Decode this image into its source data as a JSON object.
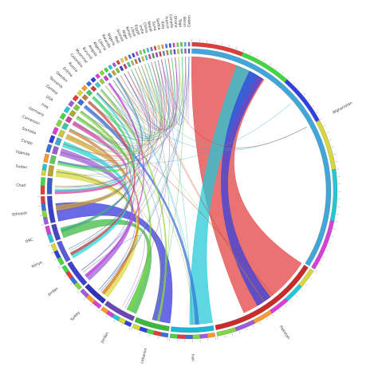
{
  "chart_data": {
    "type": "chord",
    "title": "",
    "sectors": [
      {
        "name": "Afghanistan",
        "value": 1100000,
        "color": "#41a6d9"
      },
      {
        "name": "Pakistan",
        "value": 420000,
        "color": "#c92b2b"
      },
      {
        "name": "Iran",
        "value": 160000,
        "color": "#18b8d8"
      },
      {
        "name": "Lebanon",
        "value": 130000,
        "color": "#3aba3a"
      },
      {
        "name": "Jordan",
        "value": 120000,
        "color": "#6a48b4"
      },
      {
        "name": "Turkey",
        "value": 90000,
        "color": "#2e32b8"
      },
      {
        "name": "Jordan",
        "value": 100000,
        "color": "#4040d0"
      },
      {
        "name": "Kenya",
        "value": 80000,
        "color": "#5b5bd9"
      },
      {
        "name": "DRC",
        "value": 60000,
        "color": "#4a44c0"
      },
      {
        "name": "Ethiopia",
        "value": 100000,
        "color": "#3b3fc9"
      },
      {
        "name": "Chad",
        "value": 60000,
        "color": "#3b5fc9"
      },
      {
        "name": "Sudan",
        "value": 40000,
        "color": "#b8a230"
      },
      {
        "name": "Uganda",
        "value": 30000,
        "color": "#5fc95f"
      },
      {
        "name": "Congo",
        "value": 28000,
        "color": "#9b5dc9"
      },
      {
        "name": "Somalia",
        "value": 26000,
        "color": "#3fa9c9"
      },
      {
        "name": "Cameroon",
        "value": 24000,
        "color": "#c9c93f"
      },
      {
        "name": "Germany",
        "value": 22000,
        "color": "#3fc9a0"
      },
      {
        "name": "Iraq",
        "value": 20000,
        "color": "#c93f9b"
      },
      {
        "name": "USA",
        "value": 20000,
        "color": "#b5a830"
      },
      {
        "name": "Zambia",
        "value": 18000,
        "color": "#7fc93f"
      },
      {
        "name": "Tanzania",
        "value": 18000,
        "color": "#3f6fc9"
      },
      {
        "name": "Sweden",
        "value": 16000,
        "color": "#c9793f"
      },
      {
        "name": "Eritrea",
        "value": 16000,
        "color": "#3fc96f"
      },
      {
        "name": "Russia",
        "value": 14000,
        "color": "#c93f3f"
      },
      {
        "name": "Colombia",
        "value": 14000,
        "color": "#3fc9c9"
      },
      {
        "name": "Myanmar",
        "value": 12000,
        "color": "#9bc93f"
      },
      {
        "name": "Burundi",
        "value": 12000,
        "color": "#c93fc9"
      },
      {
        "name": "Angola",
        "value": 10000,
        "color": "#3f9bc9"
      },
      {
        "name": "Algeria",
        "value": 10000,
        "color": "#c9a03f"
      },
      {
        "name": "Liberia",
        "value": 9000,
        "color": "#6fc93f"
      },
      {
        "name": "Rwanda",
        "value": 9000,
        "color": "#3f3fc9"
      },
      {
        "name": "Nigeria",
        "value": 8000,
        "color": "#c93f6f"
      },
      {
        "name": "Mali",
        "value": 8000,
        "color": "#3fc99b"
      },
      {
        "name": "Guinea",
        "value": 7000,
        "color": "#a0c93f"
      },
      {
        "name": "Niger",
        "value": 7000,
        "color": "#c96f3f"
      },
      {
        "name": "Yemen",
        "value": 6000,
        "color": "#3f6fc9"
      },
      {
        "name": "Libya",
        "value": 6000,
        "color": "#c9c93f"
      },
      {
        "name": "Egypt",
        "value": 6000,
        "color": "#3fc9c9"
      },
      {
        "name": "India",
        "value": 6000,
        "color": "#c93f9b"
      },
      {
        "name": "China",
        "value": 5000,
        "color": "#3fa03f"
      },
      {
        "name": "Nepal",
        "value": 5000,
        "color": "#9b3fc9"
      },
      {
        "name": "Syria",
        "value": 5000,
        "color": "#c93f3f"
      },
      {
        "name": "Serbia",
        "value": 5000,
        "color": "#3f9bc9"
      },
      {
        "name": "Italy",
        "value": 5000,
        "color": "#c9793f"
      },
      {
        "name": "France",
        "value": 5000,
        "color": "#3fc96f"
      },
      {
        "name": "Canada",
        "value": 5000,
        "color": "#6f3fc9"
      },
      {
        "name": "Ghana",
        "value": 5000,
        "color": "#c9c93f"
      },
      {
        "name": "Togo",
        "value": 5000,
        "color": "#3fc99b"
      },
      {
        "name": "Benin",
        "value": 5000,
        "color": "#c93fc9"
      },
      {
        "name": "Gabon",
        "value": 5000,
        "color": "#3f6fc9"
      }
    ],
    "flows": [
      {
        "from": 0,
        "to": 1,
        "value": 300000,
        "color": "#e23b3b"
      },
      {
        "from": 0,
        "to": 2,
        "value": 90000,
        "color": "#1fc9d8"
      },
      {
        "from": 1,
        "to": 0,
        "value": 60000,
        "color": "#2f3fe0"
      },
      {
        "from": 3,
        "to": 9,
        "value": 70000,
        "color": "#2e32d8"
      },
      {
        "from": 4,
        "to": 8,
        "value": 40000,
        "color": "#3ab83a"
      },
      {
        "from": 5,
        "to": 11,
        "value": 30000,
        "color": "#d8d83a"
      },
      {
        "from": 6,
        "to": 13,
        "value": 28000,
        "color": "#9b5dd9"
      },
      {
        "from": 7,
        "to": 14,
        "value": 22000,
        "color": "#1fd8d8"
      },
      {
        "from": 9,
        "to": 15,
        "value": 20000,
        "color": "#d8a030"
      },
      {
        "from": 10,
        "to": 17,
        "value": 16000,
        "color": "#d83fa0"
      },
      {
        "from": 12,
        "to": 18,
        "value": 14000,
        "color": "#5fd85f"
      },
      {
        "from": 2,
        "to": 20,
        "value": 14000,
        "color": "#3a6fd8"
      },
      {
        "from": 8,
        "to": 22,
        "value": 12000,
        "color": "#3fd86f"
      },
      {
        "from": 16,
        "to": 5,
        "value": 12000,
        "color": "#d8793a"
      },
      {
        "from": 19,
        "to": 4,
        "value": 10000,
        "color": "#7fd83f"
      },
      {
        "from": 21,
        "to": 7,
        "value": 10000,
        "color": "#d83f3f"
      },
      {
        "from": 23,
        "to": 10,
        "value": 8000,
        "color": "#3fd8d8"
      },
      {
        "from": 24,
        "to": 3,
        "value": 8000,
        "color": "#9bd83f"
      },
      {
        "from": 26,
        "to": 6,
        "value": 7000,
        "color": "#d83fd8"
      },
      {
        "from": 28,
        "to": 12,
        "value": 6000,
        "color": "#3f9bd8"
      }
    ]
  }
}
